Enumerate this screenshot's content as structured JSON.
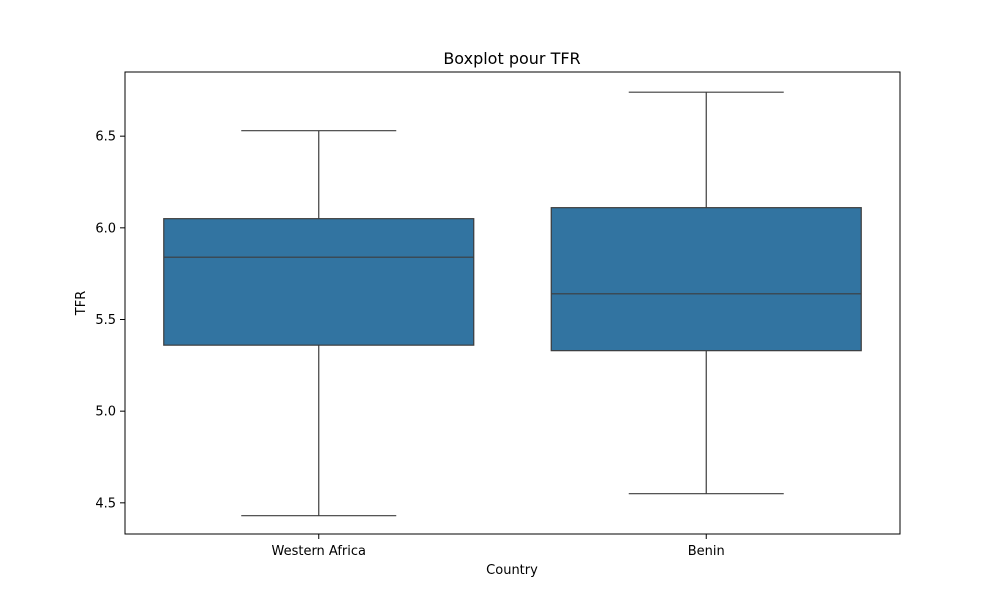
{
  "chart_data": {
    "type": "box",
    "title": "Boxplot pour TFR",
    "xlabel": "Country",
    "ylabel": "TFR",
    "ylim": [
      4.33,
      6.85
    ],
    "yticks": [
      4.5,
      5.0,
      5.5,
      6.0,
      6.5
    ],
    "ytick_labels": [
      "4.5",
      "5.0",
      "5.5",
      "6.0",
      "6.5"
    ],
    "grid": false,
    "categories": [
      "Western Africa",
      "Benin"
    ],
    "boxes": [
      {
        "category": "Western Africa",
        "whisker_low": 4.43,
        "q1": 5.36,
        "median": 5.84,
        "q3": 6.05,
        "whisker_high": 6.53
      },
      {
        "category": "Benin",
        "whisker_low": 4.55,
        "q1": 5.33,
        "median": 5.64,
        "q3": 6.11,
        "whisker_high": 6.74
      }
    ],
    "colors": {
      "box_fill": "#3274a1",
      "line": "#3d3d3d",
      "axes": "#000000"
    }
  }
}
